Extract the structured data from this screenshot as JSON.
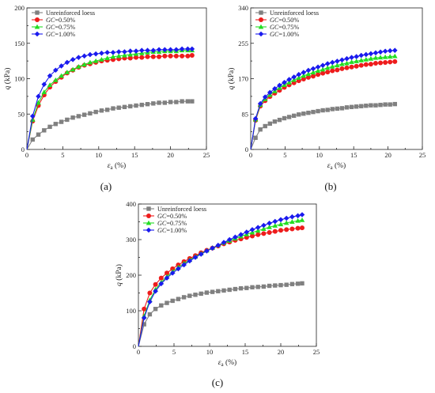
{
  "chart_data": [
    {
      "type": "line",
      "panel_label": "(a)",
      "xlabel": "εa (%)",
      "xlabel_symbol": "ε",
      "xlabel_sub": "a",
      "xlabel_unit": " (%)",
      "ylabel": "q (kPa)",
      "ylabel_symbol": "q",
      "ylabel_unit": " (kPa)",
      "xlim": [
        0,
        25
      ],
      "ylim": [
        0,
        200
      ],
      "xticks": [
        0,
        5,
        10,
        15,
        20,
        25
      ],
      "yticks": [
        0,
        50,
        100,
        150,
        200
      ],
      "legend_position": "top-left",
      "grid": false,
      "series": [
        {
          "name": "Unreinforced loess",
          "prefix": "",
          "suffix": "",
          "color": "#808080",
          "marker": "square",
          "x": [
            0.8,
            1.6,
            2.4,
            3.2,
            4.0,
            4.8,
            5.6,
            6.4,
            7.2,
            8.0,
            8.8,
            9.6,
            10.4,
            11.2,
            12.0,
            12.8,
            13.6,
            14.4,
            15.2,
            16.0,
            16.8,
            17.6,
            18.4,
            19.2,
            20.0,
            20.8,
            21.6,
            22.4,
            23.0
          ],
          "y": [
            14,
            21,
            27,
            32,
            36,
            39,
            42,
            45,
            47,
            49,
            51,
            53,
            55,
            56,
            58,
            59,
            60,
            61,
            62,
            63,
            64,
            65,
            66,
            66,
            67,
            67,
            68,
            68,
            68
          ]
        },
        {
          "name": "GC=0.50%",
          "prefix": "GC",
          "suffix": "=0.50%",
          "color": "#ee1c1c",
          "marker": "circle",
          "x": [
            0.8,
            1.6,
            2.4,
            3.2,
            4.0,
            4.8,
            5.6,
            6.4,
            7.2,
            8.0,
            8.8,
            9.6,
            10.4,
            11.2,
            12.0,
            12.8,
            13.6,
            14.4,
            15.2,
            16.0,
            16.8,
            17.6,
            18.4,
            19.2,
            20.0,
            20.8,
            21.6,
            22.4,
            23.0
          ],
          "y": [
            40,
            62,
            77,
            88,
            96,
            102,
            108,
            112,
            116,
            119,
            121,
            123,
            125,
            126,
            127,
            128,
            129,
            129,
            130,
            130,
            131,
            131,
            131,
            132,
            132,
            132,
            132,
            132,
            133
          ]
        },
        {
          "name": "GC=0.75%",
          "prefix": "GC",
          "suffix": "=0.75%",
          "color": "#22dd22",
          "marker": "triangle",
          "x": [
            0.8,
            1.6,
            2.4,
            3.2,
            4.0,
            4.8,
            5.6,
            6.4,
            7.2,
            8.0,
            8.8,
            9.6,
            10.4,
            11.2,
            12.0,
            12.8,
            13.6,
            14.4,
            15.2,
            16.0,
            16.8,
            17.6,
            18.4,
            19.2,
            20.0,
            20.8,
            21.6,
            22.4,
            23.0
          ],
          "y": [
            42,
            66,
            81,
            91,
            98,
            104,
            109,
            113,
            117,
            120,
            123,
            125,
            127,
            129,
            131,
            132,
            133,
            134,
            135,
            136,
            137,
            138,
            138,
            139,
            139,
            139,
            140,
            140,
            140
          ]
        },
        {
          "name": "GC=1.00%",
          "prefix": "GC",
          "suffix": "=1.00%",
          "color": "#1a1aee",
          "marker": "diamond",
          "x": [
            0.8,
            1.6,
            2.4,
            3.2,
            4.0,
            4.8,
            5.6,
            6.4,
            7.2,
            8.0,
            8.8,
            9.6,
            10.4,
            11.2,
            12.0,
            12.8,
            13.6,
            14.4,
            15.2,
            16.0,
            16.8,
            17.6,
            18.4,
            19.2,
            20.0,
            20.8,
            21.6,
            22.4,
            23.0
          ],
          "y": [
            47,
            75,
            92,
            104,
            112,
            118,
            123,
            127,
            130,
            132,
            134,
            135,
            136,
            137,
            137,
            138,
            138,
            139,
            139,
            140,
            140,
            140,
            141,
            141,
            141,
            141,
            142,
            142,
            142
          ]
        }
      ]
    },
    {
      "type": "line",
      "panel_label": "(b)",
      "xlabel": "εa (%)",
      "xlabel_symbol": "ε",
      "xlabel_sub": "a",
      "xlabel_unit": " (%)",
      "ylabel": "q (kPa)",
      "ylabel_symbol": "q",
      "ylabel_unit": " (kPa)",
      "xlim": [
        0,
        25
      ],
      "ylim": [
        0,
        340
      ],
      "xticks": [
        0,
        5,
        10,
        15,
        20,
        25
      ],
      "yticks": [
        0,
        85,
        170,
        255,
        340
      ],
      "legend_position": "top-left",
      "grid": false,
      "series": [
        {
          "name": "Unreinforced loess",
          "prefix": "",
          "suffix": "",
          "color": "#808080",
          "marker": "square",
          "x": [
            0.7,
            1.4,
            2.1,
            2.8,
            3.5,
            4.2,
            4.9,
            5.6,
            6.3,
            7.0,
            7.7,
            8.4,
            9.1,
            9.8,
            10.5,
            11.2,
            11.9,
            12.6,
            13.3,
            14.0,
            14.7,
            15.4,
            16.1,
            16.8,
            17.5,
            18.2,
            18.9,
            19.6,
            20.3,
            21.0
          ],
          "y": [
            28,
            48,
            56,
            62,
            67,
            71,
            75,
            78,
            81,
            84,
            86,
            88,
            90,
            92,
            94,
            95,
            97,
            98,
            99,
            101,
            102,
            103,
            104,
            105,
            106,
            106,
            107,
            108,
            108,
            109
          ]
        },
        {
          "name": "GC=0.50%",
          "prefix": "GC",
          "suffix": "=0.50%",
          "color": "#ee1c1c",
          "marker": "circle",
          "x": [
            0.7,
            1.4,
            2.1,
            2.8,
            3.5,
            4.2,
            4.9,
            5.6,
            6.3,
            7.0,
            7.7,
            8.4,
            9.1,
            9.8,
            10.5,
            11.2,
            11.9,
            12.6,
            13.3,
            14.0,
            14.7,
            15.4,
            16.1,
            16.8,
            17.5,
            18.2,
            18.9,
            19.6,
            20.3,
            21.0
          ],
          "y": [
            70,
            104,
            117,
            127,
            135,
            142,
            149,
            155,
            160,
            165,
            169,
            173,
            176,
            180,
            183,
            186,
            189,
            191,
            194,
            196,
            198,
            200,
            202,
            204,
            205,
            207,
            208,
            209,
            210,
            211
          ]
        },
        {
          "name": "GC=0.75%",
          "prefix": "GC",
          "suffix": "=0.75%",
          "color": "#22dd22",
          "marker": "triangle",
          "x": [
            0.7,
            1.4,
            2.1,
            2.8,
            3.5,
            4.2,
            4.9,
            5.6,
            6.3,
            7.0,
            7.7,
            8.4,
            9.1,
            9.8,
            10.5,
            11.2,
            11.9,
            12.6,
            13.3,
            14.0,
            14.7,
            15.4,
            16.1,
            16.8,
            17.5,
            18.2,
            18.9,
            19.6,
            20.3,
            21.0
          ],
          "y": [
            72,
            107,
            121,
            131,
            140,
            148,
            155,
            161,
            167,
            172,
            177,
            181,
            185,
            189,
            192,
            196,
            199,
            202,
            205,
            207,
            210,
            212,
            214,
            216,
            218,
            220,
            221,
            222,
            223,
            224
          ]
        },
        {
          "name": "GC=1.00%",
          "prefix": "GC",
          "suffix": "=1.00%",
          "color": "#1a1aee",
          "marker": "diamond",
          "x": [
            0.7,
            1.4,
            2.1,
            2.8,
            3.5,
            4.2,
            4.9,
            5.6,
            6.3,
            7.0,
            7.7,
            8.4,
            9.1,
            9.8,
            10.5,
            11.2,
            11.9,
            12.6,
            13.3,
            14.0,
            14.7,
            15.4,
            16.1,
            16.8,
            17.5,
            18.2,
            18.9,
            19.6,
            20.3,
            21.0
          ],
          "y": [
            74,
            110,
            126,
            137,
            146,
            154,
            161,
            168,
            174,
            180,
            185,
            190,
            194,
            198,
            202,
            206,
            209,
            212,
            215,
            218,
            221,
            223,
            226,
            228,
            230,
            232,
            234,
            236,
            237,
            238
          ]
        }
      ]
    },
    {
      "type": "line",
      "panel_label": "(c)",
      "xlabel": "εa (%)",
      "xlabel_symbol": "ε",
      "xlabel_sub": "a",
      "xlabel_unit": " (%)",
      "ylabel": "q (kPa)",
      "ylabel_symbol": "q",
      "ylabel_unit": " (kPa)",
      "xlim": [
        0,
        25
      ],
      "ylim": [
        0,
        400
      ],
      "xticks": [
        0,
        5,
        10,
        15,
        20,
        25
      ],
      "yticks": [
        0,
        100,
        200,
        300,
        400
      ],
      "legend_position": "top-left",
      "grid": false,
      "series": [
        {
          "name": "Unreinforced loess",
          "prefix": "",
          "suffix": "",
          "color": "#808080",
          "marker": "square",
          "x": [
            0.8,
            1.6,
            2.4,
            3.2,
            4.0,
            4.8,
            5.6,
            6.4,
            7.2,
            8.0,
            8.8,
            9.6,
            10.4,
            11.2,
            12.0,
            12.8,
            13.6,
            14.4,
            15.2,
            16.0,
            16.8,
            17.6,
            18.4,
            19.2,
            20.0,
            20.8,
            21.6,
            22.4,
            23.0
          ],
          "y": [
            62,
            90,
            105,
            115,
            122,
            128,
            133,
            138,
            142,
            145,
            148,
            151,
            153,
            155,
            157,
            159,
            161,
            163,
            164,
            166,
            167,
            168,
            170,
            171,
            172,
            173,
            175,
            176,
            177
          ]
        },
        {
          "name": "GC=0.50%",
          "prefix": "GC",
          "suffix": "=0.50%",
          "color": "#ee1c1c",
          "marker": "circle",
          "x": [
            0.8,
            1.6,
            2.4,
            3.2,
            4.0,
            4.8,
            5.6,
            6.4,
            7.2,
            8.0,
            8.8,
            9.6,
            10.4,
            11.2,
            12.0,
            12.8,
            13.6,
            14.4,
            15.2,
            16.0,
            16.8,
            17.6,
            18.4,
            19.2,
            20.0,
            20.8,
            21.6,
            22.4,
            23.0
          ],
          "y": [
            105,
            150,
            174,
            192,
            206,
            218,
            229,
            238,
            247,
            255,
            263,
            270,
            276,
            282,
            288,
            293,
            298,
            302,
            306,
            310,
            314,
            317,
            320,
            323,
            326,
            328,
            330,
            332,
            333
          ]
        },
        {
          "name": "GC=0.75%",
          "prefix": "GC",
          "suffix": "=0.75%",
          "color": "#22dd22",
          "marker": "triangle",
          "x": [
            0.8,
            1.6,
            2.4,
            3.2,
            4.0,
            4.8,
            5.6,
            6.4,
            7.2,
            8.0,
            8.8,
            9.6,
            10.4,
            11.2,
            12.0,
            12.8,
            13.6,
            14.4,
            15.2,
            16.0,
            16.8,
            17.6,
            18.4,
            19.2,
            20.0,
            20.8,
            21.6,
            22.4,
            23.0
          ],
          "y": [
            85,
            130,
            160,
            180,
            196,
            210,
            222,
            233,
            243,
            252,
            261,
            269,
            277,
            284,
            291,
            297,
            303,
            309,
            315,
            320,
            325,
            330,
            335,
            339,
            343,
            347,
            350,
            353,
            355
          ]
        },
        {
          "name": "GC=1.00%",
          "prefix": "GC",
          "suffix": "=1.00%",
          "color": "#1a1aee",
          "marker": "diamond",
          "x": [
            0.8,
            1.6,
            2.4,
            3.2,
            4.0,
            4.8,
            5.6,
            6.4,
            7.2,
            8.0,
            8.8,
            9.6,
            10.4,
            11.2,
            12.0,
            12.8,
            13.6,
            14.4,
            15.2,
            16.0,
            16.8,
            17.6,
            18.4,
            19.2,
            20.0,
            20.8,
            21.6,
            22.4,
            23.0
          ],
          "y": [
            80,
            125,
            155,
            176,
            192,
            206,
            218,
            229,
            240,
            250,
            259,
            268,
            276,
            284,
            292,
            300,
            307,
            314,
            321,
            328,
            334,
            340,
            346,
            351,
            356,
            360,
            364,
            367,
            370
          ]
        }
      ]
    }
  ]
}
